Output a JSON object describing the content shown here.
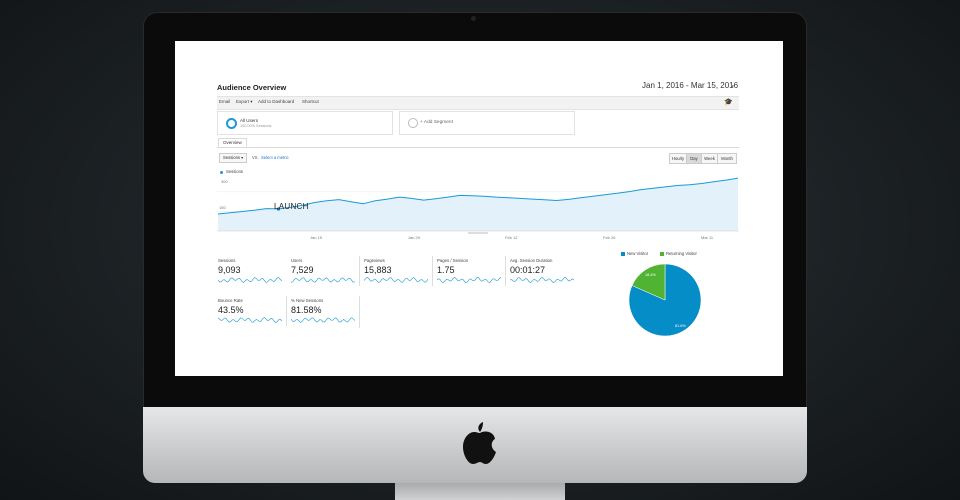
{
  "report": {
    "title": "Audience Overview",
    "date_range": "Jan 1, 2016 - Mar 15, 2016"
  },
  "toolbar": {
    "items": [
      "Email",
      "Export ▾",
      "Add to Dashboard",
      "Shortcut"
    ]
  },
  "segments": {
    "active": {
      "name": "All Users",
      "sub": "100.00% Sessions"
    },
    "add_label": "+ Add Segment"
  },
  "tabs": {
    "overview": "Overview"
  },
  "controls": {
    "metric": "Sessions ▾",
    "vs": "VS.",
    "select_metric": "Select a metric",
    "granularity": [
      "Hourly",
      "Day",
      "Week",
      "Month"
    ],
    "active_granularity": "Day"
  },
  "chart_data": {
    "type": "area",
    "legend": "Sessions",
    "y_ticks": [
      "300",
      "150"
    ],
    "x_ticks": [
      "Jan 15",
      "Jan 29",
      "Feb 12",
      "Feb 26",
      "Mar 11"
    ],
    "annotation": "LAUNCH",
    "values": [
      100,
      108,
      115,
      122,
      132,
      130,
      140,
      152,
      168,
      178,
      185,
      172,
      160,
      178,
      188,
      200,
      192,
      182,
      190,
      200,
      210,
      208,
      205,
      200,
      196,
      192,
      188,
      184,
      180,
      186,
      196,
      205,
      214,
      222,
      232,
      244,
      252,
      260,
      268,
      272,
      280,
      290,
      300,
      312
    ],
    "launch_index": 5,
    "ylim": [
      0,
      330
    ]
  },
  "kpis": [
    {
      "label": "Sessions",
      "value": "9,093"
    },
    {
      "label": "Users",
      "value": "7,529"
    },
    {
      "label": "Pageviews",
      "value": "15,883"
    },
    {
      "label": "Pages / Session",
      "value": "1.75"
    },
    {
      "label": "Avg. Session Duration",
      "value": "00:01:27"
    },
    {
      "label": "Bounce Rate",
      "value": "43.5%"
    },
    {
      "label": "% New Sessions",
      "value": "81.58%"
    }
  ],
  "pie": {
    "legend": [
      "New Visitor",
      "Returning Visitor"
    ],
    "colors": [
      "#058dc7",
      "#50b432"
    ],
    "values": [
      81.6,
      18.4
    ],
    "labels": [
      "81.6%",
      "18.4%"
    ]
  }
}
